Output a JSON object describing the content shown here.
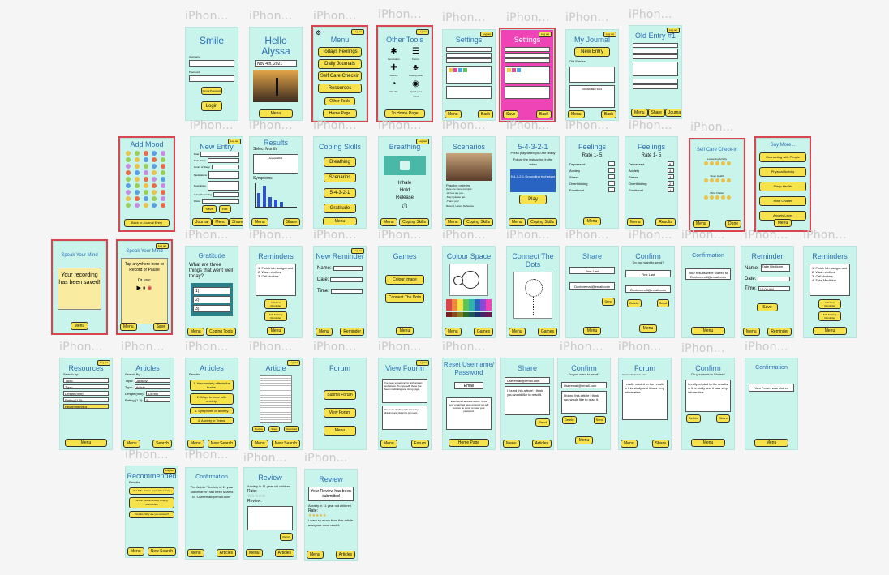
{
  "colors": {
    "canvas_bg": "#f5f5f5",
    "frame_bg": "#c9f4ec",
    "button_bg": "#f6e24a",
    "title_blue": "#2a6fb3",
    "selection_red": "#d8454f",
    "settings_pink": "#ee44b6"
  },
  "frame_label": "iPhon...",
  "common": {
    "log_out": "Log out",
    "menu": "Menu",
    "back": "Back",
    "share": "Share",
    "save": "Save",
    "journal": "Journal",
    "send": "Send",
    "delete": "Delete",
    "articles": "Articles",
    "forum": "Forum",
    "new_search": "New Search",
    "search": "Search",
    "reminder": "Reminder",
    "coping_skills": "Coping Skills",
    "coping_tools": "Coping Tools",
    "games": "Games",
    "results": "Results",
    "done": "Done",
    "play": "Play",
    "to_home_page": "To Home Page",
    "home_page": "Home Page"
  },
  "screens": {
    "smile": {
      "title": "Smile",
      "username": "Username",
      "password": "Password",
      "forgot": "Forgot Password",
      "login": "Login"
    },
    "hello": {
      "title": "Hello Alyssa",
      "date": "Nov 4th, 2021",
      "menu": "Menu"
    },
    "menu": {
      "title": "Menu",
      "items": [
        "Todays Feelings",
        "Daily Journals",
        "Self Care Checkin",
        "Resources"
      ],
      "other": "Other Tools",
      "home": "Home Page"
    },
    "other_tools": {
      "title": "Other Tools",
      "tools": [
        "Reminders",
        "Forum",
        "Games",
        "Coping skills",
        "Results",
        "Speak your mind"
      ],
      "home": "To Home Page"
    },
    "settings1": {
      "title": "Settings"
    },
    "settings2": {
      "title": "Settings"
    },
    "my_journal": {
      "title": "My Journal",
      "new_entry": "New Entry",
      "old_entries": "Old Entries",
      "month": "NOVEMBER 2021"
    },
    "old_entry": {
      "title": "Old Entry #1"
    },
    "add_mood": {
      "title": "Add Mood",
      "back": "Back to Journal Entry"
    },
    "new_entry": {
      "title": "New Entry",
      "fields": [
        "Date",
        "Rate Sleep",
        "Hours of Sleep",
        "Medications",
        "Description",
        "Voice Recording",
        "Photo"
      ],
      "save": "Save",
      "edit": "Edit"
    },
    "results": {
      "title": "Results",
      "select_month": "Select Month",
      "month": "August 2021",
      "symptoms": "Symptoms"
    },
    "coping": {
      "title": "Coping Skills",
      "items": [
        "Breathing",
        "Scenarios",
        "5-4-3-2-1",
        "Gratitude"
      ]
    },
    "breathing": {
      "title": "Breathing",
      "steps": [
        "Inhale",
        "Hold",
        "Release"
      ]
    },
    "scenarios": {
      "title": "Scenarios",
      "lines": [
        "Practice ordering",
        "Here are some prompts:",
        "-Hi how are you..",
        "-May I please get..",
        "-Thank you!",
        "Record, Listen, Rehearse"
      ]
    },
    "five4321": {
      "title": "5-4-3-2-1",
      "intro": "Press play when you are ready",
      "follow": "Follow the instruction in the video",
      "video": "5-4-3-2-1 Grounding technique",
      "play": "Play"
    },
    "feelings1": {
      "title": "Feelings",
      "rate": "Rate 1- 5",
      "items": [
        "Depressed",
        "Anxiety",
        "Stress",
        "Overthinking",
        "Emotional"
      ]
    },
    "feelings2": {
      "title": "Feelings",
      "rate": "Rate 1- 5",
      "items": [
        "Depressed",
        "Anxiety",
        "Stress",
        "Overthinking",
        "Emotional"
      ],
      "values": [
        "5",
        "4",
        "3",
        "2",
        "1"
      ]
    },
    "self_care": {
      "title": "Self Care Check-in",
      "sections": [
        "Loosening Activity",
        "Sleep Health",
        "Mind Chatter"
      ]
    },
    "say_more": {
      "title": "Say More...",
      "items": [
        "Connecting with People",
        "Physical Activity",
        "Sleep Health",
        "Mind Chatter",
        "Anxiety Level"
      ]
    },
    "speak1": {
      "title": "Speak Your Mind",
      "saved": "Your recording has been saved!"
    },
    "speak2": {
      "title": "Speak Your Mind",
      "tap": "Tap anywhere here to Record or Pause",
      "or_use": "Or use:"
    },
    "gratitude": {
      "title": "Gratitude",
      "question": "What are three things that went well today?",
      "nums": [
        "1)",
        "2)",
        "3)"
      ]
    },
    "reminders1": {
      "title": "Reminders",
      "items": [
        "1. Finish lab assignment",
        "2. Wash clothes",
        "3. Call doctors"
      ],
      "add": "Add New Reminder",
      "edit": "Edit Existing Reminder"
    },
    "new_reminder": {
      "title": "New Reminder",
      "labels": [
        "Name:",
        "Date:",
        "Time:"
      ]
    },
    "games": {
      "title": "Games",
      "items": [
        "Colour image",
        "Connect The Dots"
      ]
    },
    "colour_space": {
      "title": "Colour Space"
    },
    "connect_dots": {
      "title": "Connect The Dots"
    },
    "share1": {
      "title": "Share",
      "name": "First Last",
      "email": "Doctoremail@email.com"
    },
    "confirm1": {
      "title": "Confirm",
      "question": "Do you want to send?",
      "name": "First Last",
      "email": "Doctoremail@email.com"
    },
    "confirmation1": {
      "title": "Confirmation",
      "msg": "Your results were shared to Doctoremail@email.com"
    },
    "reminder2": {
      "title": "Reminder",
      "labels": [
        "Name:",
        "Date:",
        "Time:"
      ],
      "name_val": "Take Medicine",
      "time_val": "12:00 AM"
    },
    "reminders2": {
      "title": "Reminders",
      "items": [
        "1. Finish lab assignment",
        "2. Wash clothes",
        "3. Call doctors",
        "4. Take Medicine"
      ],
      "add": "Add New Reminder",
      "edit": "Edit Existing Reminder"
    },
    "resources": {
      "title": "Resources",
      "search_by": "Search by:",
      "fields": [
        "Topic:",
        "Type:",
        "Lenght (min):",
        "Rating (1-5):",
        "Recommended"
      ]
    },
    "articles1": {
      "title": "Articles",
      "search_by": "Search By:",
      "topic": "Anxiety",
      "type": "Article",
      "length": "3-5 min",
      "rating": "5"
    },
    "articles2": {
      "title": "Articles",
      "results": "Results",
      "items": [
        "1. How anxiety affects the brains.",
        "2. Ways to cope with anxiety.",
        "3. Symptoms of anxiety.",
        "4. Anxiety in Teens."
      ]
    },
    "article": {
      "title": "Article",
      "actions": [
        "Review",
        "Share",
        "Download"
      ]
    },
    "forum1": {
      "title": "Forum",
      "items": [
        "Submit Forum",
        "View Forum"
      ]
    },
    "view_forum": {
      "title": "View Fourm",
      "posts": [
        "I've been experiencing high anxiety and stress. To cope with those I've been meditating and doing yoga.",
        "I've been dealing with stress by drawing and listening to music."
      ]
    },
    "reset": {
      "title": "Reset Username/ Password",
      "email": "Email",
      "msg": "Enter email address above. Once your email has been entered you will receive an email to reset your password.",
      "home": "Home Page"
    },
    "share2": {
      "title": "Share",
      "email": "Useremail@email.com",
      "comment": "I found this article! I think you would like to read it."
    },
    "confirm2": {
      "title": "Confirm",
      "question": "Do you want to send?",
      "email": "Useremail@email.com",
      "comment": "I found this article I think you would like to read it."
    },
    "forum2": {
      "title": "Forum",
      "subtitle": "Insert submission here:",
      "text": "I really related to the results in this study and it was very informative."
    },
    "confirm3": {
      "title": "Confirm",
      "question": "Do you want to Shaire?",
      "text": "I really related to the results in this study and it was very informative."
    },
    "confirmation2": {
      "title": "Confirmation",
      "msg": "Your Forum was shared"
    },
    "recommended": {
      "title": "Recommended",
      "results": "Results",
      "items": [
        "Ted Talk: How to cope with anxiety",
        "Article: Social Anxiety Coping Mechanism",
        "Youtube: Why are you anxious?"
      ]
    },
    "confirmation3": {
      "title": "Confirmation",
      "msg": "The Article \"Anxiety in 11 year old children\" has been shared to \"Useremail@email.com\""
    },
    "review1": {
      "title": "Review",
      "article_title": "Anxiety in 11 year old children",
      "rate": "Rate:",
      "review": "Review:",
      "report": "Report"
    },
    "review2": {
      "title": "Review",
      "submitted": "Your Review has been submitted",
      "article_title": "Anxiety in 11 year old children",
      "rate": "Rate:",
      "review": "I want so much from this article everyone must read it."
    }
  }
}
